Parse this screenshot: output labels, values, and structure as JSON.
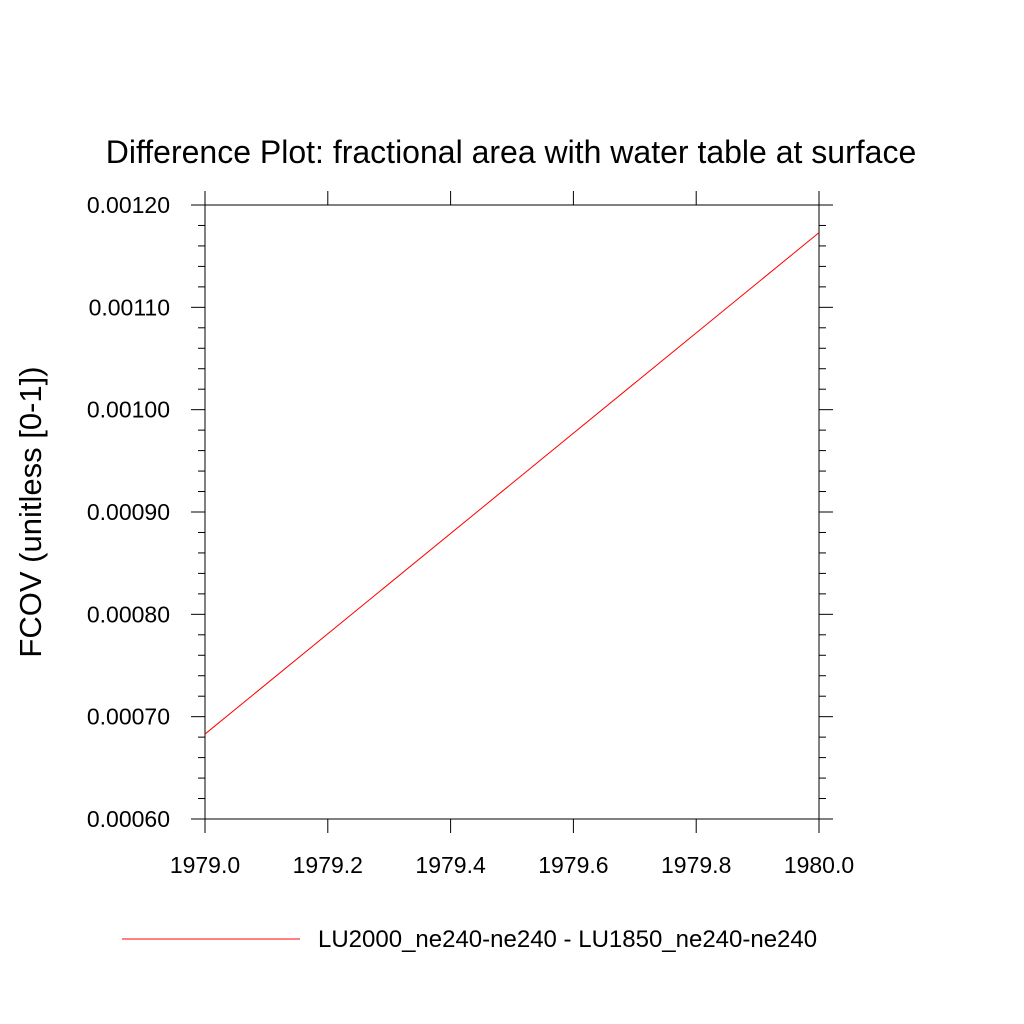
{
  "chart_data": {
    "type": "line",
    "title": "Difference Plot: fractional area with water table at surface",
    "xlabel": "",
    "ylabel": "FCOV  (unitless [0-1])",
    "xlim": [
      1979.0,
      1980.0
    ],
    "ylim": [
      0.0006,
      0.0012
    ],
    "x_ticks": [
      "1979.0",
      "1979.2",
      "1979.4",
      "1979.6",
      "1979.8",
      "1980.0"
    ],
    "y_ticks": [
      "0.00060",
      "0.00070",
      "0.00080",
      "0.00090",
      "0.00100",
      "0.00110",
      "0.00120"
    ],
    "grid": false,
    "legend_position": "bottom",
    "series": [
      {
        "name": "LU2000_ne240-ne240 - LU1850_ne240-ne240",
        "color": "#ff0000",
        "x": [
          1979.0,
          1980.0
        ],
        "y": [
          0.000683,
          0.001173
        ]
      }
    ]
  }
}
